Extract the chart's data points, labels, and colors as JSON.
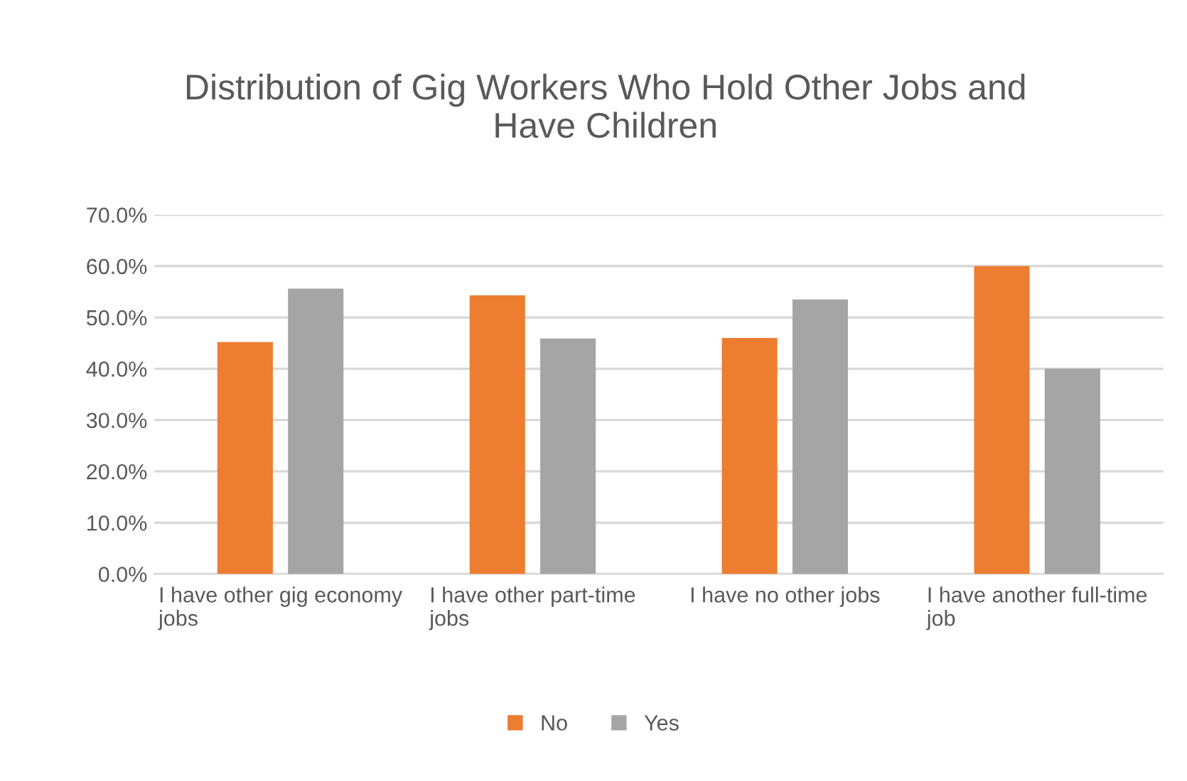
{
  "chart_data": {
    "type": "bar",
    "title": "Distribution of Gig Workers Who Hold Other Jobs and Have Children",
    "categories": [
      "I have other gig economy jobs",
      "I have other part-time jobs",
      "I have no other jobs",
      "I have another full-time job"
    ],
    "series": [
      {
        "name": "No",
        "color": "#ed7d31",
        "values": [
          45.2,
          54.3,
          46.0,
          60.0
        ]
      },
      {
        "name": "Yes",
        "color": "#a5a5a5",
        "values": [
          55.6,
          45.9,
          53.5,
          40.0
        ]
      }
    ],
    "ylim": [
      0,
      70
    ],
    "yticks": [
      {
        "value": 0,
        "label": "0.0%"
      },
      {
        "value": 10,
        "label": "10.0%"
      },
      {
        "value": 20,
        "label": "20.0%"
      },
      {
        "value": 30,
        "label": "30.0%"
      },
      {
        "value": 40,
        "label": "40.0%"
      },
      {
        "value": 50,
        "label": "50.0%"
      },
      {
        "value": 60,
        "label": "60.0%"
      },
      {
        "value": 70,
        "label": "70.0%"
      }
    ],
    "grid": "y",
    "legend": "bottom"
  }
}
